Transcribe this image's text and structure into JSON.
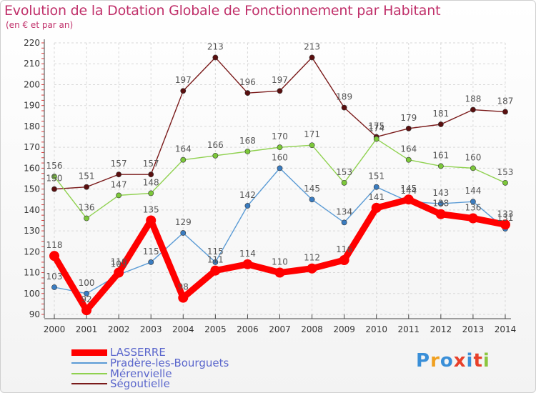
{
  "chart_data": {
    "type": "line",
    "title": "Evolution de la Dotation Globale de Fonctionnement par Habitant",
    "subtitle": "(en € et par an)",
    "x": [
      "2000",
      "2001",
      "2002",
      "2003",
      "2004",
      "2005",
      "2006",
      "2007",
      "2008",
      "2009",
      "2010",
      "2011",
      "2012",
      "2013",
      "2014"
    ],
    "ylim": [
      90,
      220
    ],
    "yticks": [
      90,
      100,
      110,
      120,
      130,
      140,
      150,
      160,
      170,
      180,
      190,
      200,
      210,
      220
    ],
    "grid": true,
    "series": [
      {
        "name": "Ségoutielle",
        "color": "#7a1a1a",
        "dot": "#5a0f0f",
        "values": [
          150,
          151,
          157,
          157,
          197,
          213,
          196,
          197,
          213,
          189,
          175,
          179,
          181,
          188,
          187
        ],
        "labels": [
          "150",
          "151",
          "157",
          "157",
          "197",
          "213",
          "196",
          "197",
          "213",
          "189",
          "175",
          "179",
          "181",
          "188",
          "187"
        ]
      },
      {
        "name": "Mérenvielle",
        "color": "#8fd14f",
        "dot": "#7cc83a",
        "values": [
          156,
          136,
          147,
          148,
          164,
          166,
          168,
          170,
          171,
          153,
          174,
          164,
          161,
          160,
          153
        ],
        "labels": [
          "156",
          "136",
          "147",
          "148",
          "164",
          "166",
          "168",
          "170",
          "171",
          "153",
          "174",
          "164",
          "161",
          "160",
          "153"
        ]
      },
      {
        "name": "Pradère-les-Bourguets",
        "color": "#5b9bd5",
        "dot": "#3a7cc0",
        "values": [
          103,
          100,
          109,
          115,
          129,
          115,
          142,
          160,
          145,
          134,
          151,
          144,
          143,
          144,
          131
        ],
        "labels": [
          "103",
          "100",
          "109",
          "115",
          "129",
          "115",
          "142",
          "160",
          "145",
          "134",
          "151",
          "144",
          "143",
          "144",
          "131"
        ]
      },
      {
        "name": "LASSERRE",
        "color": "#ff0000",
        "dot": "#ff0000",
        "values": [
          118,
          92,
          110,
          135,
          98,
          111,
          114,
          110,
          112,
          116,
          141,
          145,
          138,
          136,
          133
        ],
        "labels": [
          "118",
          "92",
          "110",
          "135",
          "98",
          "111",
          "114",
          "110",
          "112",
          "116",
          "141",
          "145",
          "138",
          "136",
          "133"
        ]
      }
    ]
  },
  "legend": {
    "items": [
      {
        "label": "LASSERRE",
        "color": "#ff0000"
      },
      {
        "label": "Pradère-les-Bourguets",
        "color": "#5b9bd5"
      },
      {
        "label": "Mérenvielle",
        "color": "#8fd14f"
      },
      {
        "label": "Ségoutielle",
        "color": "#7a1a1a"
      }
    ]
  },
  "brand": {
    "letters": [
      "P",
      "r",
      "o",
      "x",
      "i",
      "t",
      "i"
    ],
    "colors": [
      "#3a8fd8",
      "#f0a020",
      "#3a8fd8",
      "#e8402a",
      "#3a8fd8",
      "#e8402a",
      "#8cc63f"
    ]
  }
}
